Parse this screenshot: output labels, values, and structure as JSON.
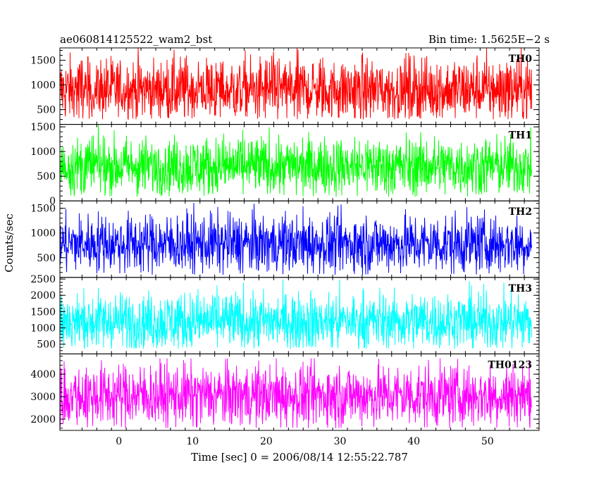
{
  "header": {
    "left_title": "ae060814125522_wam2_bst",
    "right_title": "Bin time: 1.5625E−2 s"
  },
  "chart_data": {
    "type": "line",
    "xlabel": "Time [sec] 0 = 2006/08/14 12:55:22.787",
    "ylabel": "Counts/sec",
    "xlim": [
      -8,
      57
    ],
    "data_xrange": [
      -8,
      56
    ],
    "x_ticks": [
      0,
      10,
      20,
      30,
      40,
      50
    ],
    "panels": [
      {
        "name": "TH0",
        "color": "#ff0000",
        "ylim": [
          200,
          1750
        ],
        "yticks": [
          500,
          1000,
          1500
        ],
        "mean": 900,
        "spread": 330,
        "min": 300,
        "max": 1750
      },
      {
        "name": "TH1",
        "color": "#00ff00",
        "ylim": [
          0,
          1550
        ],
        "yticks": [
          0,
          500,
          1000,
          1500
        ],
        "mean": 700,
        "spread": 300,
        "min": 80,
        "max": 1550
      },
      {
        "name": "TH2",
        "color": "#0000ff",
        "ylim": [
          100,
          1650
        ],
        "yticks": [
          500,
          1000,
          1500
        ],
        "mean": 780,
        "spread": 300,
        "min": 150,
        "max": 1650
      },
      {
        "name": "TH3",
        "color": "#00ffff",
        "ylim": [
          200,
          2550
        ],
        "yticks": [
          500,
          1000,
          1500,
          2000,
          2500
        ],
        "mean": 1200,
        "spread": 450,
        "min": 350,
        "max": 2500
      },
      {
        "name": "TH0123",
        "color": "#ff00ff",
        "ylim": [
          1500,
          4900
        ],
        "yticks": [
          2000,
          3000,
          4000
        ],
        "mean": 3050,
        "spread": 700,
        "min": 1600,
        "max": 4700
      }
    ]
  }
}
